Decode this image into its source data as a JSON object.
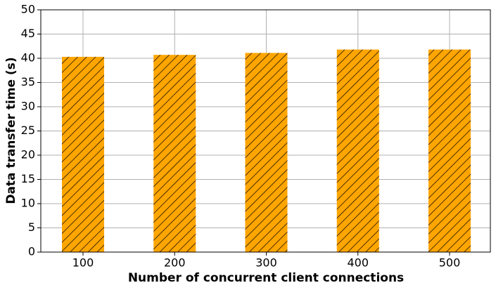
{
  "chart_data": {
    "type": "bar",
    "x_label": "Number of concurrent client connections",
    "y_label": "Data transfer time (s)",
    "categories": [
      "100",
      "200",
      "300",
      "400",
      "500"
    ],
    "values": [
      40.3,
      40.7,
      41.1,
      41.8,
      41.8
    ],
    "color": "#ffa500",
    "ylim": [
      0,
      50
    ],
    "yticks": [
      0,
      5,
      10,
      15,
      20,
      25,
      30,
      35,
      40,
      45,
      50
    ],
    "grid": true
  }
}
